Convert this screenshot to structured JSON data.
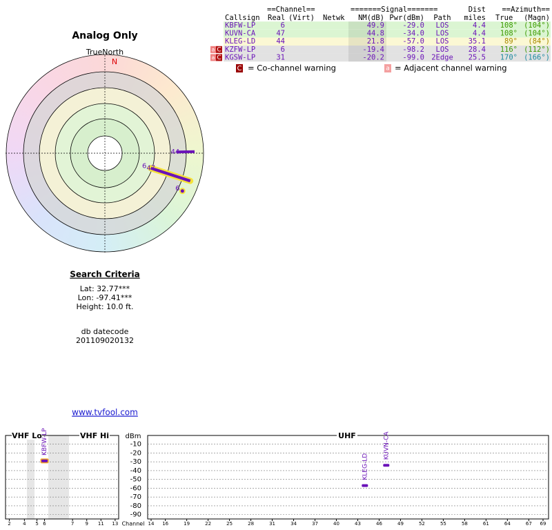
{
  "radar": {
    "title": "Analog Only",
    "north_label": "TrueNorth",
    "north": "N"
  },
  "search": {
    "title": "Search Criteria",
    "lat": "Lat: 32.77***",
    "lon": "Lon: -97.41***",
    "height": "Height: 10.0 ft.",
    "datecode_label": "db datecode",
    "datecode": "201109020132"
  },
  "link": "www.tvfool.com",
  "table": {
    "group_headers": {
      "channel": "==Channel==",
      "signal": "=======Signal=======",
      "dist": "Dist",
      "azimuth": "==Azimuth=="
    },
    "headers": {
      "callsign": "Callsign",
      "real": "Real",
      "virt": "(Virt)",
      "netwk": "Netwk",
      "nm": "NM(dB)",
      "pwr": "Pwr(dBm)",
      "path": "Path",
      "dist": "miles",
      "true_az": "True",
      "magn": "(Magn)"
    },
    "rows": [
      {
        "callsign": "KBFW-LP",
        "real": 6,
        "nm": "49.9",
        "pwr": "-29.0",
        "path": "LOS",
        "dist": "4.4",
        "true_az": "108°",
        "magn": "(104°)",
        "row_color": "#dbf5d2",
        "az_color": "#3b9a00",
        "highlight": true
      },
      {
        "callsign": "KUVN-CA",
        "real": 47,
        "nm": "44.8",
        "pwr": "-34.0",
        "path": "LOS",
        "dist": "4.4",
        "true_az": "108°",
        "magn": "(104°)",
        "row_color": "#dbf5d2",
        "az_color": "#3b9a00"
      },
      {
        "callsign": "KLEG-LD",
        "real": 44,
        "nm": "21.8",
        "pwr": "-57.0",
        "path": "LOS",
        "dist": "35.1",
        "true_az": "89°",
        "magn": "(84°)",
        "row_color": "#fbf8d4",
        "az_color": "#a88a00"
      },
      {
        "callsign": "KZFW-LP",
        "real": 6,
        "nm": "-19.4",
        "pwr": "-98.2",
        "path": "LOS",
        "dist": "28.4",
        "true_az": "116°",
        "magn": "(112°)",
        "row_color": "#e2e2e2",
        "az_color": "#3b9a00",
        "adj_flag": "a",
        "co_flag": "C"
      },
      {
        "callsign": "KGSW-LP",
        "real": 31,
        "nm": "-20.2",
        "pwr": "-99.0",
        "path": "2Edge",
        "dist": "25.5",
        "true_az": "170°",
        "magn": "(166°)",
        "row_color": "#e2e2e2",
        "az_color": "#1b8aa0",
        "adj_flag": "a",
        "co_flag": "C"
      }
    ],
    "legend": {
      "co_flag": "C",
      "co_text": "= Co-channel warning",
      "adj_flag": "a",
      "adj_text": "= Adjacent channel warning"
    }
  },
  "spectrum": {
    "y_label": "dBm",
    "x_label": "Channel",
    "vhf_lo": "VHF Lo",
    "vhf_hi": "VHF Hi",
    "uhf": "UHF",
    "ylim": [
      0,
      -95
    ],
    "yticks": [
      -10,
      -20,
      -30,
      -40,
      -50,
      -60,
      -70,
      -80,
      -90
    ],
    "vhf_ticks": [
      2,
      4,
      5,
      6,
      7,
      9,
      11,
      13
    ],
    "uhf_ticks": [
      14,
      16,
      19,
      22,
      25,
      28,
      31,
      34,
      37,
      40,
      43,
      46,
      49,
      52,
      55,
      58,
      61,
      64,
      67,
      69
    ],
    "grid": true
  }
}
